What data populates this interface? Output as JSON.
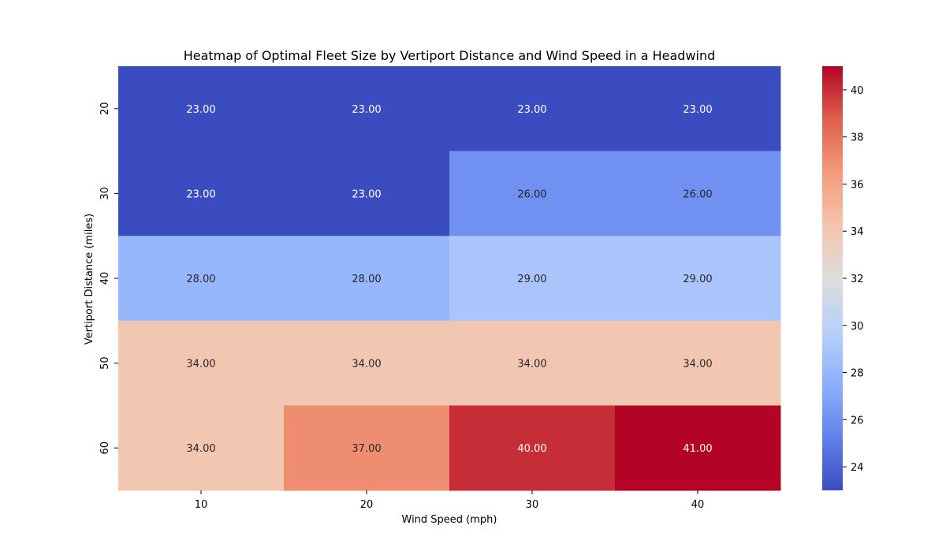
{
  "chart_data": {
    "type": "heatmap",
    "title": "Heatmap of Optimal Fleet Size by Vertiport Distance and Wind Speed in a Headwind",
    "xlabel": "Wind Speed (mph)",
    "ylabel": "Vertiport Distance (miles)",
    "x_categories": [
      "10",
      "20",
      "30",
      "40"
    ],
    "y_categories": [
      "20",
      "30",
      "40",
      "50",
      "60"
    ],
    "values": [
      [
        23,
        23,
        23,
        23
      ],
      [
        23,
        23,
        26,
        26
      ],
      [
        28,
        28,
        29,
        29
      ],
      [
        34,
        34,
        34,
        34
      ],
      [
        34,
        37,
        40,
        41
      ]
    ],
    "value_format": "0.00",
    "colormap": "coolwarm",
    "color_range": [
      23,
      41
    ],
    "colorbar_ticks": [
      "24",
      "26",
      "28",
      "30",
      "32",
      "34",
      "36",
      "38",
      "40"
    ],
    "grid": false
  }
}
